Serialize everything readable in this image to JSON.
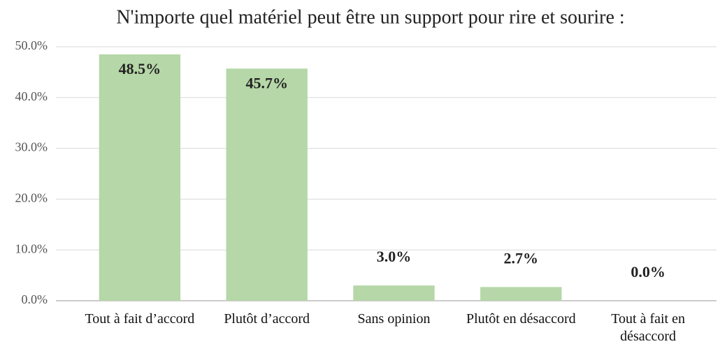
{
  "chart_data": {
    "type": "bar",
    "title": "N'importe quel matériel peut être un support pour rire et sourire :",
    "categories": [
      "Tout à fait d’accord",
      "Plutôt d’accord",
      "Sans opinion",
      "Plutôt en désaccord",
      "Tout à fait en désaccord"
    ],
    "values": [
      48.5,
      45.7,
      3.0,
      2.7,
      0.0
    ],
    "value_labels": [
      "48.5%",
      "45.7%",
      "3.0%",
      "2.7%",
      "0.0%"
    ],
    "color": "#b6d7a8",
    "ylim": [
      0,
      50
    ],
    "yticks": [
      {
        "value": 0,
        "label": "0.0%"
      },
      {
        "value": 10,
        "label": "10.0%"
      },
      {
        "value": 20,
        "label": "20.0%"
      },
      {
        "value": 30,
        "label": "30.0%"
      },
      {
        "value": 40,
        "label": "40.0%"
      },
      {
        "value": 50,
        "label": "50.0%"
      }
    ],
    "grid": true
  }
}
